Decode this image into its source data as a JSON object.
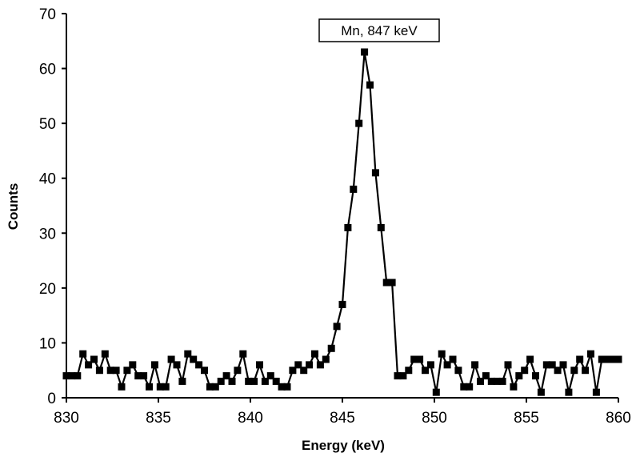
{
  "chart_data": {
    "type": "line",
    "title": "",
    "xlabel": "Energy (keV)",
    "ylabel": "Counts",
    "xlim": [
      830,
      860
    ],
    "ylim": [
      0,
      70
    ],
    "x_ticks": [
      "830",
      "835",
      "840",
      "845",
      "850",
      "855",
      "860"
    ],
    "y_ticks": [
      "0",
      "10",
      "20",
      "30",
      "40",
      "50",
      "60",
      "70"
    ],
    "grid": false,
    "legend": "none",
    "marker": "square",
    "line_color": "#000000",
    "annotation": {
      "text": "Mn, 847 keV",
      "x": 847
    },
    "series": [
      {
        "x": [
          830.0,
          830.3,
          830.6,
          830.9,
          831.2,
          831.5,
          831.8,
          832.1,
          832.4,
          832.7,
          833.0,
          833.3,
          833.6,
          833.9,
          834.2,
          834.5,
          834.8,
          835.1,
          835.4,
          835.7,
          836.0,
          836.3,
          836.6,
          836.9,
          837.2,
          837.5,
          837.8,
          838.1,
          838.4,
          838.7,
          839.0,
          839.3,
          839.6,
          839.9,
          840.2,
          840.5,
          840.8,
          841.1,
          841.4,
          841.7,
          842.0,
          842.3,
          842.6,
          842.9,
          843.2,
          843.5,
          843.8,
          844.1,
          844.4,
          844.7,
          845.0,
          845.3,
          845.6,
          845.9,
          846.2,
          846.5,
          846.8,
          847.1,
          847.4,
          847.7,
          848.0,
          848.3,
          848.6,
          848.9,
          849.2,
          849.5,
          849.8,
          850.1,
          850.4,
          850.7,
          851.0,
          851.3,
          851.6,
          851.9,
          852.2,
          852.5,
          852.8,
          853.1,
          853.4,
          853.7,
          854.0,
          854.3,
          854.6,
          854.9,
          855.2,
          855.5,
          855.8,
          856.1,
          856.4,
          856.7,
          857.0,
          857.3,
          857.6,
          857.9,
          858.2,
          858.5,
          858.8,
          859.1,
          859.4,
          859.7,
          860.0
        ],
        "y": [
          4,
          4,
          4,
          8,
          6,
          7,
          5,
          8,
          5,
          5,
          2,
          5,
          6,
          4,
          4,
          2,
          6,
          2,
          2,
          7,
          6,
          3,
          8,
          7,
          6,
          5,
          2,
          2,
          3,
          4,
          3,
          5,
          8,
          3,
          3,
          6,
          3,
          4,
          3,
          2,
          2,
          5,
          6,
          5,
          6,
          8,
          6,
          7,
          9,
          13,
          17,
          31,
          38,
          50,
          63,
          57,
          41,
          31,
          21,
          21,
          4,
          4,
          5,
          7,
          7,
          5,
          6,
          1,
          8,
          6,
          7,
          5,
          2,
          2,
          6,
          3,
          4,
          3,
          3,
          3,
          6,
          2,
          4,
          5,
          7,
          4,
          1,
          6,
          6,
          5,
          6,
          1,
          5,
          7,
          5,
          8,
          1,
          7,
          7,
          7,
          7
        ]
      }
    ]
  }
}
